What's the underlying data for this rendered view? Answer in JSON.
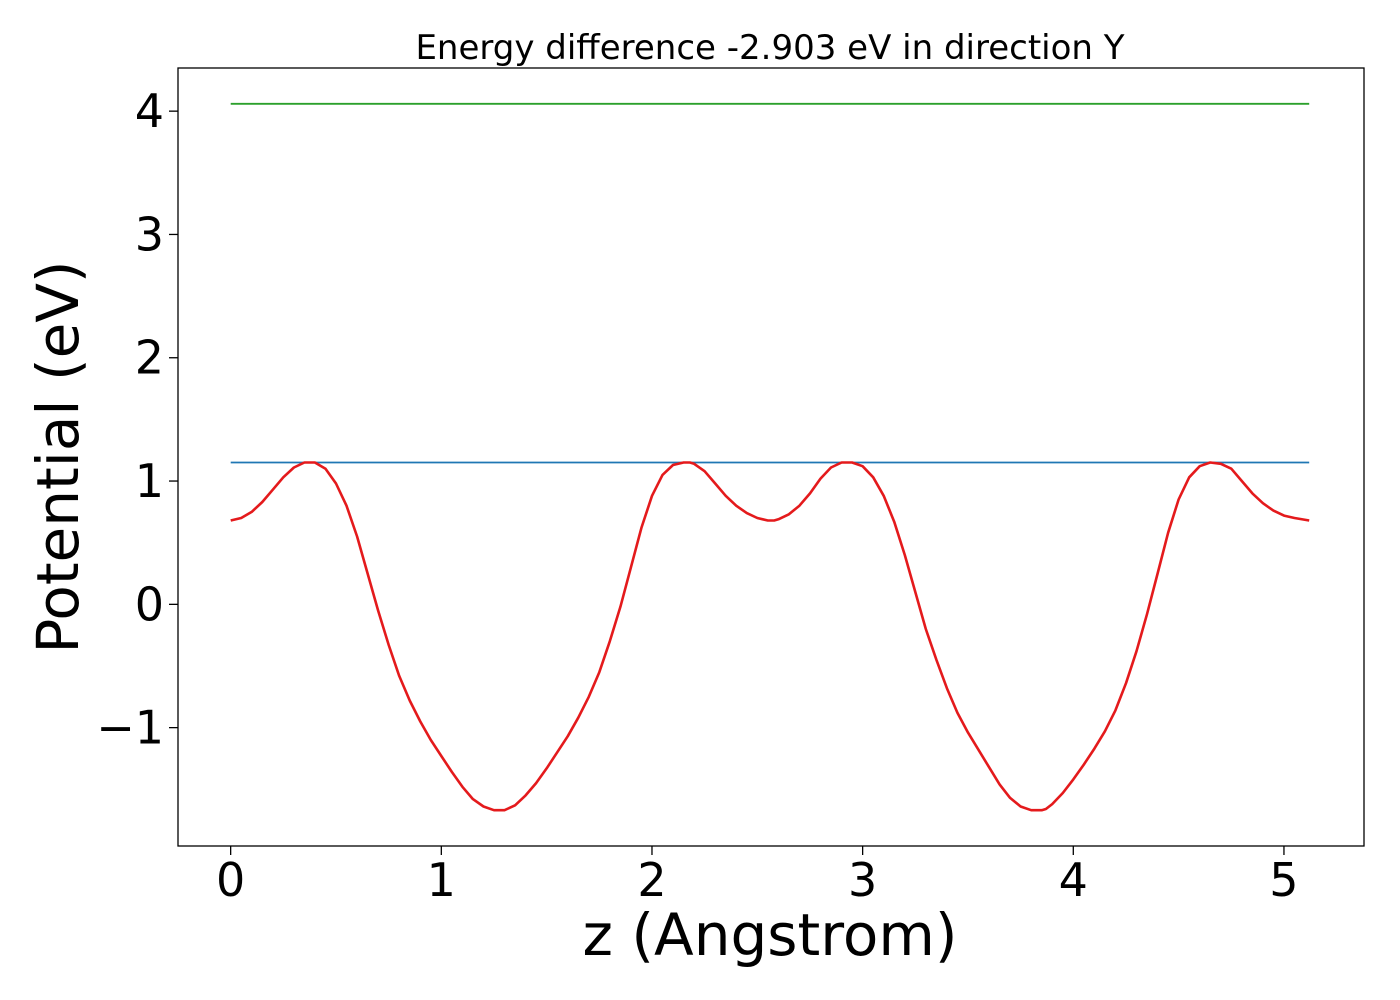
{
  "chart_data": {
    "type": "line",
    "title": "Energy difference -2.903 eV in direction Y",
    "xlabel": "z (Angstrom)",
    "ylabel": "Potential (eV)",
    "xlim": [
      -0.25,
      5.38
    ],
    "ylim": [
      -1.96,
      4.35
    ],
    "xticks": [
      0,
      1,
      2,
      3,
      4,
      5
    ],
    "yticks": [
      -1,
      0,
      1,
      2,
      3,
      4
    ],
    "xtick_labels": [
      "0",
      "1",
      "2",
      "3",
      "4",
      "5"
    ],
    "ytick_labels": [
      "−1",
      "0",
      "1",
      "2",
      "3",
      "4"
    ],
    "grid": false,
    "series": [
      {
        "color": "#2ca02c",
        "x": [
          0,
          5.12
        ],
        "y": [
          4.06,
          4.06
        ]
      },
      {
        "color": "#1f77b4",
        "x": [
          0,
          5.12
        ],
        "y": [
          1.15,
          1.15
        ]
      },
      {
        "color": "#e41a1c",
        "x": [
          0,
          0.05,
          0.1,
          0.15,
          0.2,
          0.25,
          0.3,
          0.35,
          0.4,
          0.45,
          0.5,
          0.55,
          0.6,
          0.65,
          0.7,
          0.75,
          0.8,
          0.85,
          0.9,
          0.95,
          1.0,
          1.05,
          1.1,
          1.15,
          1.2,
          1.25,
          1.3,
          1.35,
          1.4,
          1.45,
          1.5,
          1.55,
          1.6,
          1.65,
          1.7,
          1.75,
          1.8,
          1.85,
          1.9,
          1.95,
          2.0,
          2.05,
          2.1,
          2.15,
          2.18,
          2.2,
          2.25,
          2.3,
          2.35,
          2.4,
          2.45,
          2.5,
          2.55,
          2.58,
          2.6,
          2.65,
          2.7,
          2.75,
          2.8,
          2.85,
          2.9,
          2.95,
          3.0,
          3.05,
          3.1,
          3.15,
          3.2,
          3.25,
          3.3,
          3.35,
          3.4,
          3.45,
          3.5,
          3.55,
          3.6,
          3.65,
          3.7,
          3.75,
          3.8,
          3.85,
          3.87,
          3.9,
          3.95,
          4.0,
          4.05,
          4.1,
          4.15,
          4.2,
          4.25,
          4.3,
          4.35,
          4.4,
          4.45,
          4.5,
          4.55,
          4.6,
          4.65,
          4.7,
          4.75,
          4.8,
          4.85,
          4.9,
          4.95,
          5.0,
          5.05,
          5.12
        ],
        "y": [
          0.68,
          0.7,
          0.75,
          0.83,
          0.93,
          1.03,
          1.11,
          1.15,
          1.15,
          1.1,
          0.98,
          0.8,
          0.55,
          0.25,
          -0.05,
          -0.33,
          -0.58,
          -0.78,
          -0.95,
          -1.1,
          -1.23,
          -1.36,
          -1.48,
          -1.58,
          -1.64,
          -1.67,
          -1.67,
          -1.63,
          -1.55,
          -1.45,
          -1.33,
          -1.2,
          -1.07,
          -0.92,
          -0.75,
          -0.55,
          -0.3,
          -0.02,
          0.3,
          0.62,
          0.88,
          1.05,
          1.13,
          1.15,
          1.15,
          1.14,
          1.08,
          0.98,
          0.88,
          0.8,
          0.74,
          0.7,
          0.68,
          0.68,
          0.69,
          0.73,
          0.8,
          0.9,
          1.02,
          1.11,
          1.15,
          1.15,
          1.12,
          1.03,
          0.88,
          0.67,
          0.4,
          0.1,
          -0.2,
          -0.45,
          -0.68,
          -0.88,
          -1.04,
          -1.18,
          -1.32,
          -1.46,
          -1.57,
          -1.64,
          -1.67,
          -1.67,
          -1.66,
          -1.62,
          -1.53,
          -1.42,
          -1.3,
          -1.17,
          -1.03,
          -0.86,
          -0.64,
          -0.38,
          -0.08,
          0.25,
          0.58,
          0.85,
          1.03,
          1.12,
          1.15,
          1.14,
          1.1,
          1.0,
          0.9,
          0.82,
          0.76,
          0.72,
          0.7,
          0.68
        ]
      }
    ]
  }
}
